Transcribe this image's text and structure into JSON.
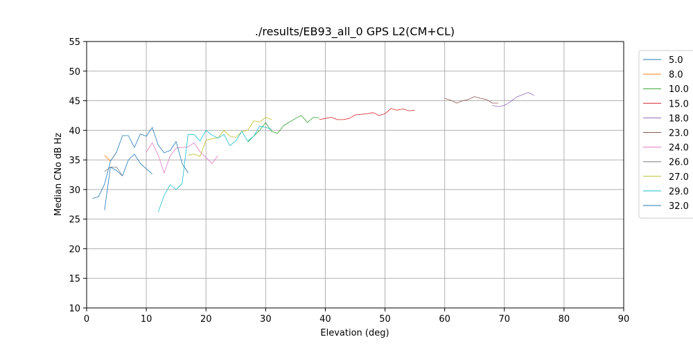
{
  "chart_data": {
    "type": "line",
    "title": "./results/EB93_all_0 GPS L2(CM+CL)",
    "xlabel": "Elevation (deg)",
    "ylabel": "Median CNo dB Hz",
    "xlim": [
      0,
      90
    ],
    "ylim": [
      10,
      55
    ],
    "xticks": [
      0,
      10,
      20,
      30,
      40,
      50,
      60,
      70,
      80,
      90
    ],
    "yticks": [
      10,
      15,
      20,
      25,
      30,
      35,
      40,
      45,
      50,
      55
    ],
    "grid": true,
    "legend_position": "right-outside",
    "series": [
      {
        "name": "5.0",
        "color": "#1f77b4",
        "x": [
          3,
          4,
          5,
          6,
          7,
          8,
          9,
          10,
          11
        ],
        "y": [
          26.5,
          33.8,
          33.2,
          32.3,
          35,
          36,
          34.4,
          33.5,
          32.6
        ]
      },
      {
        "name": "8.0",
        "color": "#ff7f0e",
        "x": [
          3,
          4,
          5
        ],
        "y": [
          35.8,
          34.8,
          36.3
        ]
      },
      {
        "name": "10.0",
        "color": "#2ca02c",
        "x": [
          27,
          28,
          29,
          30,
          31,
          32,
          33,
          34,
          35,
          36,
          37,
          38,
          39
        ],
        "y": [
          38,
          39,
          40,
          41.3,
          39.8,
          39.5,
          40.8,
          41.4,
          42,
          42.5,
          41.3,
          42.2,
          42.1
        ]
      },
      {
        "name": "15.0",
        "color": "#d62728",
        "x": [
          39,
          40,
          41,
          42,
          43,
          44,
          45,
          46,
          47,
          48,
          49,
          50,
          51,
          52,
          53,
          54,
          55
        ],
        "y": [
          41.8,
          42,
          42.2,
          41.8,
          41.8,
          42,
          42.6,
          42.7,
          42.8,
          43,
          42.5,
          42.8,
          43.7,
          43.4,
          43.6,
          43.3,
          43.4
        ]
      },
      {
        "name": "18.0",
        "color": "#9467bd",
        "x": [
          68,
          69,
          70,
          71,
          72,
          73,
          74,
          75
        ],
        "y": [
          44.2,
          44,
          44.2,
          44.8,
          45.6,
          46,
          46.4,
          45.9
        ]
      },
      {
        "name": "23.0",
        "color": "#8c564b",
        "x": [
          60,
          61,
          62,
          63,
          64,
          65,
          66,
          67,
          68,
          69
        ],
        "y": [
          45.4,
          45.1,
          44.6,
          45,
          45.2,
          45.7,
          45.4,
          45.2,
          44.6,
          44.6
        ]
      },
      {
        "name": "24.0",
        "color": "#e377c2",
        "x": [
          10,
          11,
          12,
          13,
          14,
          15,
          16,
          17,
          18,
          19,
          20,
          21,
          22
        ],
        "y": [
          36.3,
          37.9,
          35.8,
          32.8,
          35.7,
          37,
          37.1,
          37.2,
          37.9,
          36.4,
          35.4,
          34.4,
          35.7
        ]
      },
      {
        "name": "26.0",
        "color": "#7f7f7f",
        "x": [
          3,
          4,
          5,
          6
        ],
        "y": [
          33,
          33.8,
          33.8,
          32.3
        ]
      },
      {
        "name": "27.0",
        "color": "#bcbd22",
        "x": [
          17,
          18,
          19,
          20,
          21,
          22,
          23,
          24,
          25,
          26,
          27,
          28,
          29,
          30,
          31
        ],
        "y": [
          35.8,
          36,
          35.6,
          38.3,
          38.6,
          38.7,
          40,
          39,
          38.8,
          39.8,
          40,
          41.6,
          41.4,
          42.2,
          41.8
        ]
      },
      {
        "name": "29.0",
        "color": "#17becf",
        "x": [
          12,
          13,
          14,
          15,
          16,
          17,
          18,
          19,
          20,
          21,
          22,
          23,
          24,
          25,
          26,
          27,
          28,
          29,
          30,
          31
        ],
        "y": [
          26.2,
          29,
          30.8,
          30,
          31,
          39.3,
          39.3,
          38.2,
          40,
          39.2,
          38.7,
          39.3,
          37.4,
          38.2,
          39.8,
          38.2,
          39,
          40.7,
          40.5,
          40.2
        ]
      },
      {
        "name": "32.0",
        "color": "#1f77b4",
        "x": [
          1,
          2,
          3,
          4,
          5,
          6,
          7,
          8,
          9,
          10,
          11,
          12,
          13,
          14,
          15,
          16,
          17
        ],
        "y": [
          28.5,
          28.8,
          30.9,
          34.8,
          36.3,
          39.1,
          39.1,
          37.1,
          39.4,
          39,
          40.5,
          37.5,
          36.2,
          36.6,
          38.1,
          34.4,
          32.8
        ]
      }
    ]
  }
}
